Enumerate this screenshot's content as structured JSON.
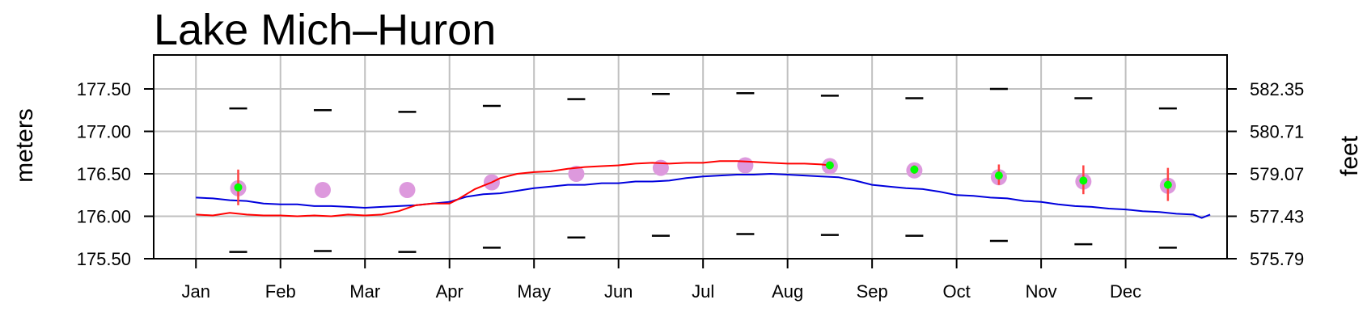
{
  "chart_data": {
    "type": "line",
    "title": "Lake Mich–Huron",
    "ylabel": "meters",
    "y2label": "feet",
    "ylim": [
      175.5,
      177.9
    ],
    "xlim": [
      0.5,
      13.2
    ],
    "months": [
      "Jan",
      "Feb",
      "Mar",
      "Apr",
      "May",
      "Jun",
      "Jul",
      "Aug",
      "Sep",
      "Oct",
      "Nov",
      "Dec"
    ],
    "y_ticks": [
      "175.50",
      "176.00",
      "176.50",
      "177.00",
      "177.50"
    ],
    "y2_ticks": [
      "575.79",
      "577.43",
      "579.07",
      "580.71",
      "582.35"
    ],
    "grid": true,
    "colors": {
      "max_min": "#000000",
      "mean": "#dd99dd",
      "forecast": "#00ff00",
      "range": "#ff4444",
      "current_year": "#ff0000",
      "last_year": "#0000dd",
      "grid": "#c0c0c0"
    },
    "series": [
      {
        "key": "record_max",
        "values": [
          177.27,
          177.25,
          177.23,
          177.3,
          177.38,
          177.44,
          177.45,
          177.42,
          177.39,
          177.5,
          177.39,
          177.27
        ]
      },
      {
        "key": "record_min",
        "values": [
          175.58,
          175.59,
          175.58,
          175.63,
          175.75,
          175.77,
          175.79,
          175.78,
          175.77,
          175.71,
          175.67,
          175.63
        ]
      },
      {
        "key": "long_term_mean",
        "values": [
          176.33,
          176.31,
          176.31,
          176.4,
          176.5,
          176.57,
          176.6,
          176.59,
          176.54,
          176.46,
          176.41,
          176.36
        ]
      },
      {
        "key": "forecast",
        "x": [
          1.5,
          8.5,
          9.5,
          10.5,
          11.5,
          12.5
        ],
        "values": [
          176.34,
          176.6,
          176.55,
          176.48,
          176.42,
          176.37
        ],
        "upper": [
          176.55,
          176.6,
          176.6,
          176.61,
          176.6,
          176.57
        ],
        "lower": [
          176.13,
          176.6,
          176.5,
          176.37,
          176.26,
          176.18
        ]
      },
      {
        "key": "current_year",
        "x": [
          1.0,
          1.2,
          1.4,
          1.6,
          1.8,
          2.0,
          2.2,
          2.4,
          2.6,
          2.8,
          3.0,
          3.2,
          3.4,
          3.6,
          3.8,
          4.0,
          4.1,
          4.2,
          4.3,
          4.4,
          4.5,
          4.6,
          4.8,
          5.0,
          5.2,
          5.4,
          5.6,
          5.8,
          6.0,
          6.2,
          6.4,
          6.6,
          6.8,
          7.0,
          7.2,
          7.4,
          7.6,
          7.8,
          8.0,
          8.2,
          8.4,
          8.5
        ],
        "values": [
          176.02,
          176.01,
          176.04,
          176.02,
          176.01,
          176.01,
          176.0,
          176.01,
          176.0,
          176.02,
          176.01,
          176.02,
          176.06,
          176.13,
          176.15,
          176.15,
          176.2,
          176.26,
          176.32,
          176.36,
          176.4,
          176.45,
          176.5,
          176.52,
          176.53,
          176.56,
          176.58,
          176.59,
          176.6,
          176.62,
          176.63,
          176.62,
          176.63,
          176.63,
          176.65,
          176.65,
          176.64,
          176.63,
          176.62,
          176.62,
          176.61,
          176.6
        ]
      },
      {
        "key": "last_year",
        "x": [
          1.0,
          1.2,
          1.4,
          1.6,
          1.8,
          2.0,
          2.2,
          2.4,
          2.6,
          2.8,
          3.0,
          3.2,
          3.4,
          3.6,
          3.8,
          4.0,
          4.2,
          4.4,
          4.6,
          4.8,
          5.0,
          5.2,
          5.4,
          5.6,
          5.8,
          6.0,
          6.2,
          6.4,
          6.6,
          6.8,
          7.0,
          7.2,
          7.4,
          7.6,
          7.8,
          8.0,
          8.2,
          8.4,
          8.6,
          8.8,
          9.0,
          9.2,
          9.4,
          9.6,
          9.8,
          10.0,
          10.2,
          10.4,
          10.6,
          10.8,
          11.0,
          11.2,
          11.4,
          11.6,
          11.8,
          12.0,
          12.2,
          12.4,
          12.6,
          12.8,
          12.9,
          13.0
        ],
        "values": [
          176.22,
          176.21,
          176.19,
          176.18,
          176.15,
          176.14,
          176.14,
          176.12,
          176.12,
          176.11,
          176.1,
          176.11,
          176.12,
          176.13,
          176.15,
          176.17,
          176.23,
          176.26,
          176.27,
          176.3,
          176.33,
          176.35,
          176.37,
          176.37,
          176.39,
          176.39,
          176.41,
          176.41,
          176.42,
          176.45,
          176.47,
          176.48,
          176.49,
          176.49,
          176.5,
          176.49,
          176.48,
          176.47,
          176.46,
          176.42,
          176.37,
          176.35,
          176.33,
          176.32,
          176.29,
          176.25,
          176.24,
          176.22,
          176.21,
          176.18,
          176.17,
          176.14,
          176.12,
          176.11,
          176.09,
          176.08,
          176.06,
          176.05,
          176.03,
          176.02,
          175.98,
          176.02
        ]
      }
    ]
  }
}
